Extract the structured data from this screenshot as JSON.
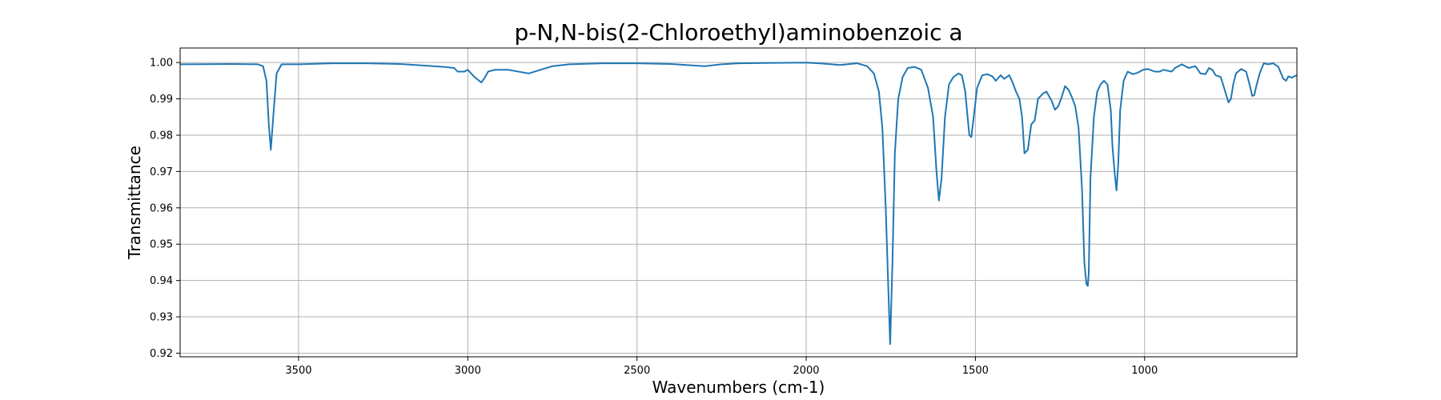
{
  "chart_data": {
    "type": "line",
    "title": "p-N,N-bis(2-Chloroethyl)aminobenzoic a",
    "xlabel": "Wavenumbers (cm-1)",
    "ylabel": "Transmittance",
    "xlim": [
      3850,
      550
    ],
    "ylim": [
      0.919,
      1.004
    ],
    "x_inverted": true,
    "grid": true,
    "xticks": [
      3500,
      3000,
      2500,
      2000,
      1500,
      1000
    ],
    "xtick_labels": [
      "3500",
      "3000",
      "2500",
      "2000",
      "1500",
      "1000"
    ],
    "yticks": [
      0.92,
      0.93,
      0.94,
      0.95,
      0.96,
      0.97,
      0.98,
      0.99,
      1.0
    ],
    "ytick_labels": [
      "0.92",
      "0.93",
      "0.94",
      "0.95",
      "0.96",
      "0.97",
      "0.98",
      "0.99",
      "1.00"
    ],
    "color": "#1f77b4",
    "series": [
      {
        "x": [
          3850,
          3700,
          3620,
          3605,
          3595,
          3588,
          3582,
          3575,
          3565,
          3550,
          3500,
          3400,
          3300,
          3200,
          3100,
          3070,
          3040,
          3030,
          3010,
          3000,
          2990,
          2980,
          2960,
          2950,
          2940,
          2920,
          2880,
          2820,
          2750,
          2700,
          2600,
          2500,
          2400,
          2300,
          2250,
          2200,
          2100,
          2000,
          1950,
          1900,
          1850,
          1820,
          1800,
          1785,
          1775,
          1765,
          1758,
          1752,
          1745,
          1738,
          1728,
          1715,
          1700,
          1680,
          1660,
          1640,
          1625,
          1615,
          1608,
          1600,
          1590,
          1578,
          1565,
          1550,
          1540,
          1530,
          1525,
          1518,
          1512,
          1505,
          1495,
          1480,
          1465,
          1450,
          1440,
          1425,
          1415,
          1400,
          1390,
          1380,
          1370,
          1362,
          1355,
          1345,
          1335,
          1325,
          1315,
          1300,
          1290,
          1275,
          1265,
          1255,
          1245,
          1235,
          1225,
          1215,
          1205,
          1195,
          1185,
          1178,
          1172,
          1168,
          1165,
          1160,
          1150,
          1140,
          1130,
          1120,
          1110,
          1100,
          1095,
          1088,
          1083,
          1078,
          1072,
          1062,
          1050,
          1035,
          1020,
          1005,
          990,
          970,
          955,
          945,
          935,
          920,
          910,
          890,
          870,
          850,
          835,
          820,
          810,
          800,
          790,
          775,
          765,
          752,
          745,
          738,
          730,
          715,
          700,
          690,
          682,
          676,
          670,
          660,
          648,
          635,
          620,
          605,
          590,
          582,
          575,
          565,
          558,
          550
        ],
        "y": [
          0.9995,
          0.9996,
          0.9995,
          0.999,
          0.995,
          0.983,
          0.976,
          0.985,
          0.997,
          0.9995,
          0.9995,
          0.9998,
          0.9998,
          0.9996,
          0.999,
          0.9988,
          0.9985,
          0.9975,
          0.9975,
          0.998,
          0.997,
          0.996,
          0.9945,
          0.9958,
          0.9975,
          0.998,
          0.998,
          0.997,
          0.999,
          0.9995,
          0.9998,
          0.9998,
          0.9996,
          0.999,
          0.9995,
          0.9998,
          0.9999,
          1.0,
          0.9997,
          0.9993,
          0.9998,
          0.999,
          0.997,
          0.992,
          0.982,
          0.96,
          0.94,
          0.9225,
          0.945,
          0.975,
          0.99,
          0.996,
          0.9985,
          0.9988,
          0.998,
          0.993,
          0.985,
          0.97,
          0.962,
          0.968,
          0.985,
          0.994,
          0.996,
          0.997,
          0.9965,
          0.992,
          0.987,
          0.98,
          0.9795,
          0.985,
          0.993,
          0.9965,
          0.9968,
          0.9962,
          0.995,
          0.9965,
          0.9955,
          0.9965,
          0.9945,
          0.992,
          0.99,
          0.985,
          0.975,
          0.976,
          0.983,
          0.984,
          0.99,
          0.9915,
          0.992,
          0.9895,
          0.987,
          0.988,
          0.9905,
          0.9935,
          0.9925,
          0.9905,
          0.988,
          0.982,
          0.965,
          0.945,
          0.939,
          0.9385,
          0.942,
          0.968,
          0.985,
          0.992,
          0.994,
          0.995,
          0.994,
          0.987,
          0.977,
          0.969,
          0.9648,
          0.972,
          0.987,
          0.995,
          0.9975,
          0.9968,
          0.9972,
          0.998,
          0.9982,
          0.9975,
          0.9975,
          0.998,
          0.9978,
          0.9975,
          0.9985,
          0.9995,
          0.9985,
          0.999,
          0.997,
          0.9968,
          0.9985,
          0.998,
          0.9965,
          0.996,
          0.993,
          0.989,
          0.99,
          0.994,
          0.997,
          0.9982,
          0.9975,
          0.994,
          0.9908,
          0.991,
          0.9935,
          0.997,
          0.9998,
          0.9995,
          0.9998,
          0.9988,
          0.9955,
          0.995,
          0.9962,
          0.9958,
          0.9962,
          0.9965
        ]
      }
    ]
  }
}
